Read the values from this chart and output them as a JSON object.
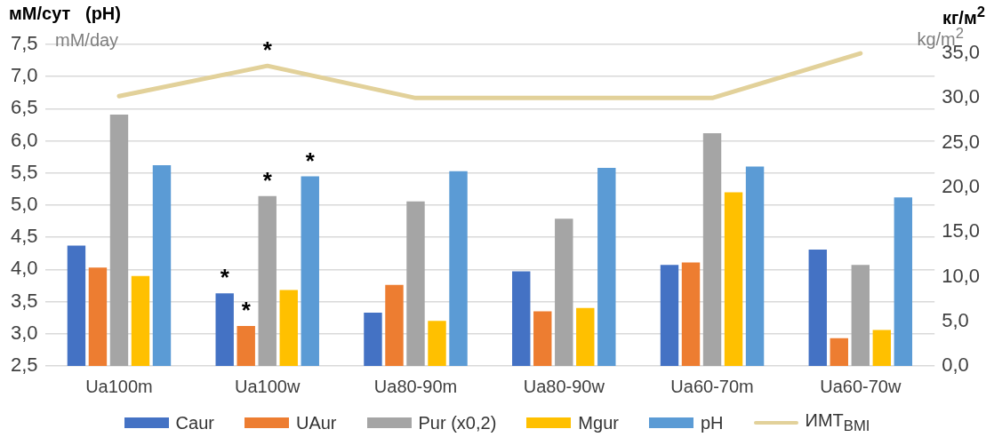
{
  "chart_data": {
    "type": "bar",
    "ylabel": "мМ/сут   (pH)",
    "y2label": "кг/м$^{2}$",
    "annotations": [
      "mM/day",
      "kg/m$^{2}$",
      "*",
      "*",
      "*",
      "*",
      "*"
    ],
    "categories": [
      "Ua100m",
      "Ua100w",
      "Ua80-90m",
      "Ua80-90w",
      "Ua60-70m",
      "Ua60-70w"
    ],
    "series": [
      {
        "name": "Caur",
        "color": "#4472c4",
        "values": [
          4.37,
          3.63,
          3.33,
          3.97,
          4.07,
          4.31
        ]
      },
      {
        "name": "UAur",
        "color": "#ed7d31",
        "values": [
          4.03,
          3.12,
          3.76,
          3.35,
          4.11,
          2.93
        ]
      },
      {
        "name": "Pur (x0,2)",
        "color": "#a5a5a5",
        "values": [
          6.41,
          5.14,
          5.06,
          4.79,
          6.12,
          4.07
        ]
      },
      {
        "name": "Mgur",
        "color": "#ffc000",
        "values": [
          3.9,
          3.68,
          3.2,
          3.4,
          5.2,
          3.06
        ]
      },
      {
        "name": "pH",
        "color": "#5b9bd5",
        "values": [
          5.62,
          5.45,
          5.53,
          5.58,
          5.6,
          5.12
        ]
      },
      {
        "name": "ИМТ$_{BMI}$",
        "type": "line",
        "axis": "y2",
        "color": "#e2d19a",
        "values": [
          30.2,
          33.6,
          30.0,
          30.0,
          30.0,
          35.0
        ]
      }
    ],
    "ylim": [
      2.5,
      7.5
    ],
    "yticks": [
      {
        "value": 2.5,
        "label": "2,5"
      },
      {
        "value": 3,
        "label": "3,0"
      },
      {
        "value": 3.5,
        "label": "3,5"
      },
      {
        "value": 4,
        "label": "4,0"
      },
      {
        "value": 4.5,
        "label": "4,5"
      },
      {
        "value": 5,
        "label": "5,0"
      },
      {
        "value": 5.5,
        "label": "5,5"
      },
      {
        "value": 6,
        "label": "6,0"
      },
      {
        "value": 6.5,
        "label": "6,5"
      },
      {
        "value": 7,
        "label": "7,0"
      },
      {
        "value": 7.5,
        "label": "7,5"
      }
    ],
    "y2lim": [
      0,
      36
    ],
    "y2ticks": [
      {
        "value": 0,
        "label": "0,0"
      },
      {
        "value": 5,
        "label": "5,0"
      },
      {
        "value": 10,
        "label": "10,0"
      },
      {
        "value": 15,
        "label": "15,0"
      },
      {
        "value": 20,
        "label": "20,0"
      },
      {
        "value": 25,
        "label": "25,0"
      },
      {
        "value": 30,
        "label": "30,0"
      },
      {
        "value": 35,
        "label": "35,0"
      }
    ],
    "grid": "y",
    "legend": "bottom",
    "marker": "none"
  }
}
